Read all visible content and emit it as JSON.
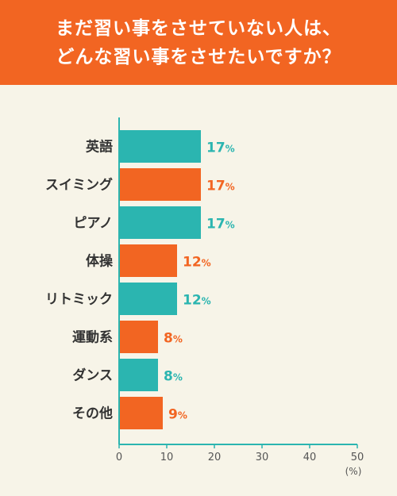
{
  "header": {
    "line1": "まだ習い事をさせていない人は、",
    "line2": "どんな習い事をさせたいですか？"
  },
  "colors": {
    "header_bg": "#f26522",
    "teal": "#2bb5b0",
    "orange": "#f26522",
    "background": "#f7f4e8"
  },
  "chart_data": {
    "type": "bar",
    "orientation": "horizontal",
    "categories": [
      "英語",
      "スイミング",
      "ピアノ",
      "体操",
      "リトミック",
      "運動系",
      "ダンス",
      "その他"
    ],
    "values": [
      17,
      17,
      17,
      12,
      12,
      8,
      8,
      9
    ],
    "value_suffix": "%",
    "bar_colors": [
      "#2bb5b0",
      "#f26522",
      "#2bb5b0",
      "#f26522",
      "#2bb5b0",
      "#f26522",
      "#2bb5b0",
      "#f26522"
    ],
    "xlim": [
      0,
      50
    ],
    "xticks": [
      0,
      10,
      20,
      30,
      40,
      50
    ],
    "x_unit": "(%)",
    "grid": false
  }
}
